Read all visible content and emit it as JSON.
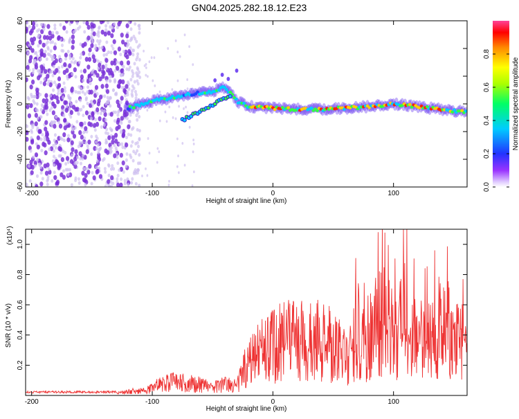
{
  "title": "GN04.2025.282.18.12.E23",
  "colors": {
    "snr_line": "#ee3333",
    "scatter": "#7a33d8",
    "scatter_light": "#cfc0f0"
  },
  "chart_data": [
    {
      "type": "heatmap",
      "xlabel": "Height of straight line (km)",
      "ylabel": "Frequency (Hz)",
      "xlim": [
        -205,
        161
      ],
      "ylim": [
        -60,
        60
      ],
      "x_ticks": [
        -200,
        -100,
        0,
        100
      ],
      "y_ticks": [
        -60,
        -40,
        -20,
        0,
        20,
        40,
        60
      ],
      "colorbar": {
        "label": "Normalized spectral amplitude",
        "range": [
          0,
          1
        ],
        "ticks": [
          0.0,
          0.2,
          0.4,
          0.6,
          0.8
        ]
      },
      "ridge": {
        "x": [
          -120,
          -100,
          -80,
          -70,
          -60,
          -50,
          -40,
          -35,
          -30,
          -20,
          0,
          20,
          40,
          60,
          80,
          100,
          120,
          140,
          160
        ],
        "y": [
          -3,
          2,
          5,
          7,
          8,
          9,
          12,
          8,
          2,
          -2,
          -3,
          -4,
          -4,
          -3,
          -2,
          0,
          -2,
          -4,
          -6
        ]
      }
    },
    {
      "type": "line",
      "xlabel": "Height of straight line (km)",
      "ylabel": "SNR (10 * v/v)",
      "y_multiplier": "(x10⁴)",
      "xlim": [
        -205,
        161
      ],
      "ylim": [
        0,
        1.1
      ],
      "x_ticks": [
        -200,
        -100,
        0,
        100
      ],
      "y_ticks": [
        0.2,
        0.4,
        0.6,
        0.8,
        1.0
      ],
      "envelope": {
        "x": [
          -205,
          -130,
          -110,
          -95,
          -80,
          -70,
          -60,
          -50,
          -40,
          -30,
          -20,
          -10,
          0,
          10,
          20,
          30,
          40,
          50,
          60,
          65,
          70,
          75,
          80,
          90,
          100,
          110,
          120,
          130,
          140,
          150,
          161
        ],
        "y": [
          0.02,
          0.02,
          0.05,
          0.1,
          0.14,
          0.12,
          0.11,
          0.08,
          0.12,
          0.1,
          0.35,
          0.45,
          0.5,
          0.55,
          0.6,
          0.55,
          0.55,
          0.5,
          0.45,
          0.42,
          0.7,
          0.5,
          0.6,
          0.8,
          0.6,
          0.8,
          0.55,
          0.6,
          0.75,
          0.6,
          0.5
        ]
      }
    }
  ]
}
